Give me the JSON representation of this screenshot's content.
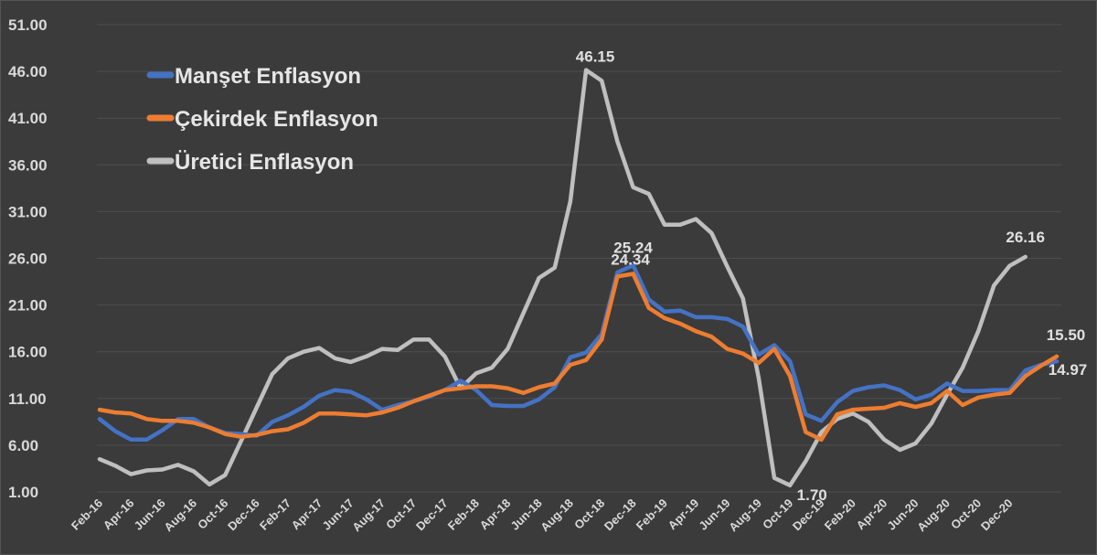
{
  "chart_data": {
    "type": "line",
    "ylim": [
      1.0,
      51.0
    ],
    "y_ticks": [
      "1.00",
      "6.00",
      "11.00",
      "16.00",
      "21.00",
      "26.00",
      "31.00",
      "36.00",
      "41.00",
      "46.00",
      "51.00"
    ],
    "x_tick_labels": [
      "Feb-16",
      "Apr-16",
      "Jun-16",
      "Aug-16",
      "Oct-16",
      "Dec-16",
      "Feb-17",
      "Apr-17",
      "Jun-17",
      "Aug-17",
      "Oct-17",
      "Dec-17",
      "Feb-18",
      "Apr-18",
      "Jun-18",
      "Aug-18",
      "Oct-18",
      "Dec-18",
      "Feb-19",
      "Apr-19",
      "Jun-19",
      "Aug-19",
      "Oct-19",
      "Dec-19",
      "Feb-20",
      "Apr-20",
      "Jun-20",
      "Aug-20",
      "Oct-20",
      "Dec-20"
    ],
    "grid": true,
    "legend_position": "top-left",
    "series": [
      {
        "name": "Manşet Enflasyon",
        "color": "#4472c4",
        "values": [
          8.8,
          7.5,
          6.6,
          6.6,
          7.6,
          8.8,
          8.8,
          7.9,
          7.3,
          7.2,
          7.0,
          8.5,
          9.2,
          10.1,
          11.3,
          11.9,
          11.7,
          10.9,
          9.8,
          10.3,
          10.7,
          11.2,
          11.9,
          12.9,
          11.9,
          10.3,
          10.2,
          10.2,
          10.9,
          12.2,
          15.4,
          15.9,
          17.9,
          24.5,
          25.24,
          21.6,
          20.3,
          20.4,
          19.7,
          19.7,
          19.5,
          18.7,
          15.7,
          16.7,
          15.0,
          9.3,
          8.6,
          10.6,
          11.8,
          12.2,
          12.4,
          11.9,
          10.9,
          11.4,
          12.6,
          11.8,
          11.8,
          11.9,
          11.9,
          14.0,
          14.6,
          14.97
        ],
        "labels": {
          "34": "25.24",
          "61": "14.97"
        }
      },
      {
        "name": "Çekirdek Enflasyon",
        "color": "#ed7d31",
        "values": [
          9.8,
          9.5,
          9.4,
          8.8,
          8.6,
          8.6,
          8.4,
          7.9,
          7.2,
          6.9,
          7.1,
          7.5,
          7.7,
          8.4,
          9.4,
          9.4,
          9.3,
          9.2,
          9.5,
          10.0,
          10.7,
          11.3,
          11.9,
          12.1,
          12.3,
          12.3,
          12.1,
          11.6,
          12.2,
          12.6,
          14.6,
          15.1,
          17.3,
          24.05,
          24.34,
          20.7,
          19.6,
          19.0,
          18.2,
          17.6,
          16.3,
          15.8,
          14.8,
          16.3,
          13.4,
          7.4,
          6.6,
          9.3,
          9.8,
          9.9,
          10.0,
          10.5,
          10.1,
          10.5,
          11.8,
          10.3,
          11.1,
          11.4,
          11.6,
          13.4,
          14.5,
          15.5
        ],
        "labels": {
          "34": "24.34",
          "61": "15.50"
        }
      },
      {
        "name": "Üretici Enflasyon",
        "color": "#bfbfbf",
        "values": [
          4.5,
          3.8,
          2.9,
          3.3,
          3.4,
          3.9,
          3.2,
          1.8,
          2.8,
          6.4,
          10.0,
          13.6,
          15.3,
          16.0,
          16.4,
          15.3,
          14.9,
          15.5,
          16.3,
          16.2,
          17.3,
          17.3,
          15.5,
          12.1,
          13.7,
          14.3,
          16.3,
          20.1,
          23.9,
          25.0,
          32.1,
          46.15,
          45.0,
          38.5,
          33.6,
          32.9,
          29.6,
          29.6,
          30.2,
          28.7,
          25.1,
          21.7,
          13.2,
          2.5,
          1.7,
          4.3,
          7.4,
          8.8,
          9.4,
          8.5,
          6.6,
          5.5,
          6.2,
          8.3,
          11.4,
          14.3,
          18.2,
          23.1,
          25.2,
          26.16
        ],
        "labels": {
          "31": "46.15",
          "44": "1.70",
          "59": "26.16"
        }
      }
    ]
  }
}
